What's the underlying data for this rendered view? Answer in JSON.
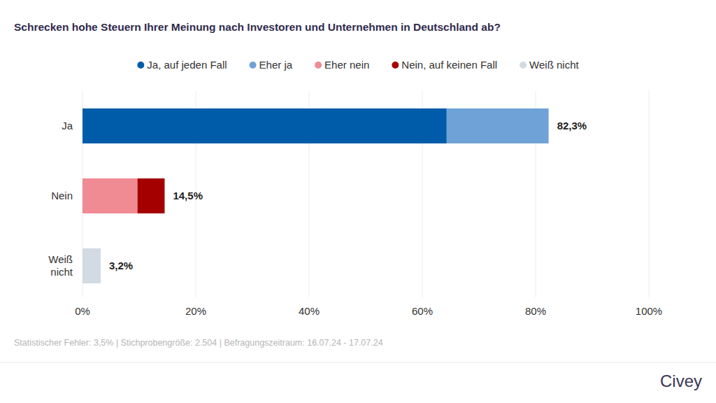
{
  "chart_data": {
    "type": "bar",
    "orientation": "horizontal",
    "stacked": true,
    "title": "Schrecken hohe Steuern Ihrer Meinung nach Investoren und Unternehmen in Deutschland ab?",
    "categories": [
      "Ja",
      "Nein",
      "Weiß nicht"
    ],
    "series": [
      {
        "name": "Ja, auf jeden Fall",
        "color": "#005ca9",
        "values": [
          64.3,
          null,
          null
        ]
      },
      {
        "name": "Eher ja",
        "color": "#6fa3d8",
        "values": [
          18.0,
          null,
          null
        ]
      },
      {
        "name": "Eher nein",
        "color": "#f08a93",
        "values": [
          null,
          9.7,
          null
        ]
      },
      {
        "name": "Nein, auf keinen Fall",
        "color": "#a50000",
        "values": [
          null,
          4.8,
          null
        ]
      },
      {
        "name": "Weiß nicht",
        "color": "#d2dae3",
        "values": [
          null,
          null,
          3.2
        ]
      }
    ],
    "totals": [
      82.3,
      14.5,
      3.2
    ],
    "total_labels": [
      "82,3%",
      "14,5%",
      "3,2%"
    ],
    "xlim": [
      0,
      100
    ],
    "xticks": [
      {
        "value": 0,
        "label": "0%"
      },
      {
        "value": 20,
        "label": "20%"
      },
      {
        "value": 40,
        "label": "40%"
      },
      {
        "value": 60,
        "label": "60%"
      },
      {
        "value": 80,
        "label": "80%"
      },
      {
        "value": 100,
        "label": "100%"
      }
    ],
    "grid": true,
    "legend": "top",
    "footnote": "Statistischer Fehler: 3,5% | Stichprobengröße: 2.504 | Befragungszeitraum: 16.07.24 - 17.07.24",
    "source": "Civey"
  }
}
